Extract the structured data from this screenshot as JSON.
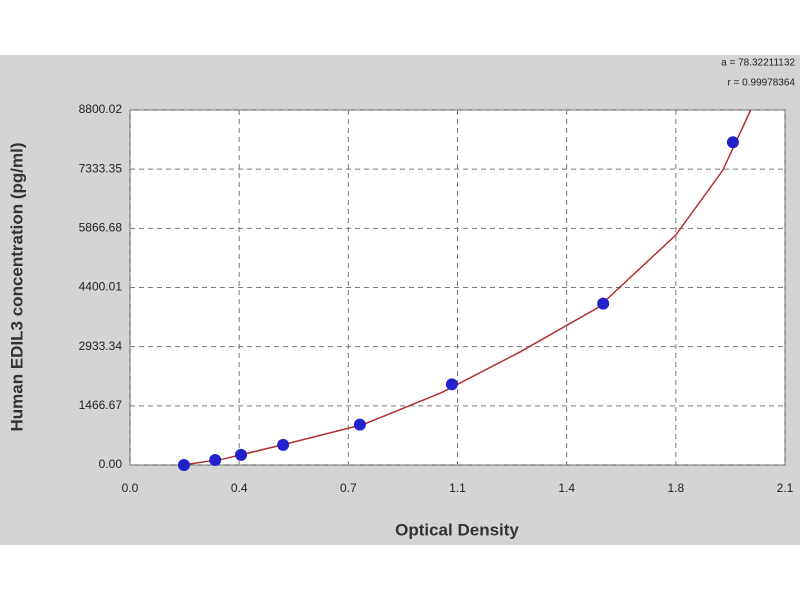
{
  "chart_data": {
    "type": "scatter",
    "x_label": "Optical Density",
    "y_label": "Human EDIL3 concentration (pg/ml)",
    "annotations": [
      "a = 78.32211132",
      "r = 0.99978364"
    ],
    "xlim": [
      0,
      2.1
    ],
    "xticks": [
      {
        "value": 0,
        "label": "0.0"
      },
      {
        "value": 0.35,
        "label": "0.4"
      },
      0.7,
      {
        "value": 1.05,
        "label": "1.1"
      },
      1.4,
      {
        "value": 1.75,
        "label": "1.8"
      },
      2.1
    ],
    "ylim": [
      0,
      8800.02
    ],
    "yticks": [
      {
        "value": 0,
        "label": "0.00"
      },
      1466.67,
      2933.34,
      4400.01,
      5866.68,
      7333.35,
      8800.02
    ],
    "grid": true,
    "points": {
      "color": "#2222cc",
      "x": [
        0.173,
        0.273,
        0.356,
        0.491,
        0.737,
        1.032,
        1.517,
        1.933
      ],
      "values": [
        0,
        125,
        250,
        500,
        1000,
        2000,
        4000,
        8000
      ]
    },
    "curve": {
      "color": "#b03030",
      "x": [
        0.17,
        0.3,
        0.5,
        0.75,
        1.0,
        1.25,
        1.5,
        1.75,
        1.9,
        1.99
      ],
      "values": [
        0,
        150,
        520,
        1010,
        1800,
        2800,
        3900,
        5700,
        7300,
        8800
      ]
    }
  }
}
